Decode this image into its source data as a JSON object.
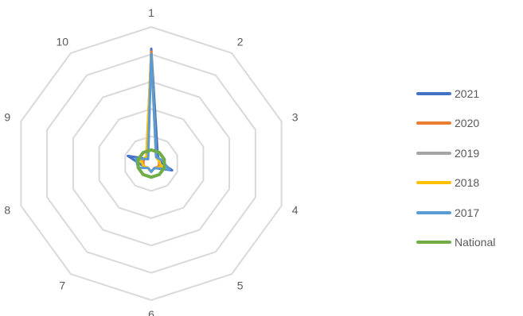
{
  "chart_data": {
    "type": "radar",
    "categories": [
      "1",
      "2",
      "3",
      "4",
      "5",
      "6",
      "7",
      "8",
      "9",
      "10"
    ],
    "rmax": 5,
    "grid_levels": 5,
    "grid": true,
    "legend_position": "right",
    "series": [
      {
        "name": "2021",
        "color": "#4472C4",
        "values": [
          4.2,
          0.4,
          0.3,
          0.8,
          0.2,
          0.3,
          0.2,
          0.3,
          0.9,
          0.2
        ]
      },
      {
        "name": "2020",
        "color": "#ED7D31",
        "values": [
          4.1,
          0.3,
          0.3,
          0.3,
          0.2,
          0.3,
          0.2,
          0.3,
          0.3,
          0.3
        ]
      },
      {
        "name": "2019",
        "color": "#A5A5A5",
        "values": [
          4.0,
          0.3,
          0.3,
          0.4,
          0.2,
          0.3,
          0.2,
          0.3,
          0.4,
          0.3
        ]
      },
      {
        "name": "2018",
        "color": "#FFC000",
        "values": [
          4.0,
          0.3,
          0.3,
          0.4,
          0.2,
          0.3,
          0.2,
          0.3,
          0.4,
          0.3
        ]
      },
      {
        "name": "2017",
        "color": "#5B9BD5",
        "values": [
          4.0,
          0.3,
          0.4,
          0.7,
          0.2,
          0.3,
          0.2,
          0.5,
          0.6,
          0.2
        ]
      },
      {
        "name": "National",
        "color": "#70AD47",
        "values": [
          0.5,
          0.5,
          0.5,
          0.5,
          0.5,
          0.5,
          0.5,
          0.5,
          0.5,
          0.5
        ]
      }
    ]
  }
}
